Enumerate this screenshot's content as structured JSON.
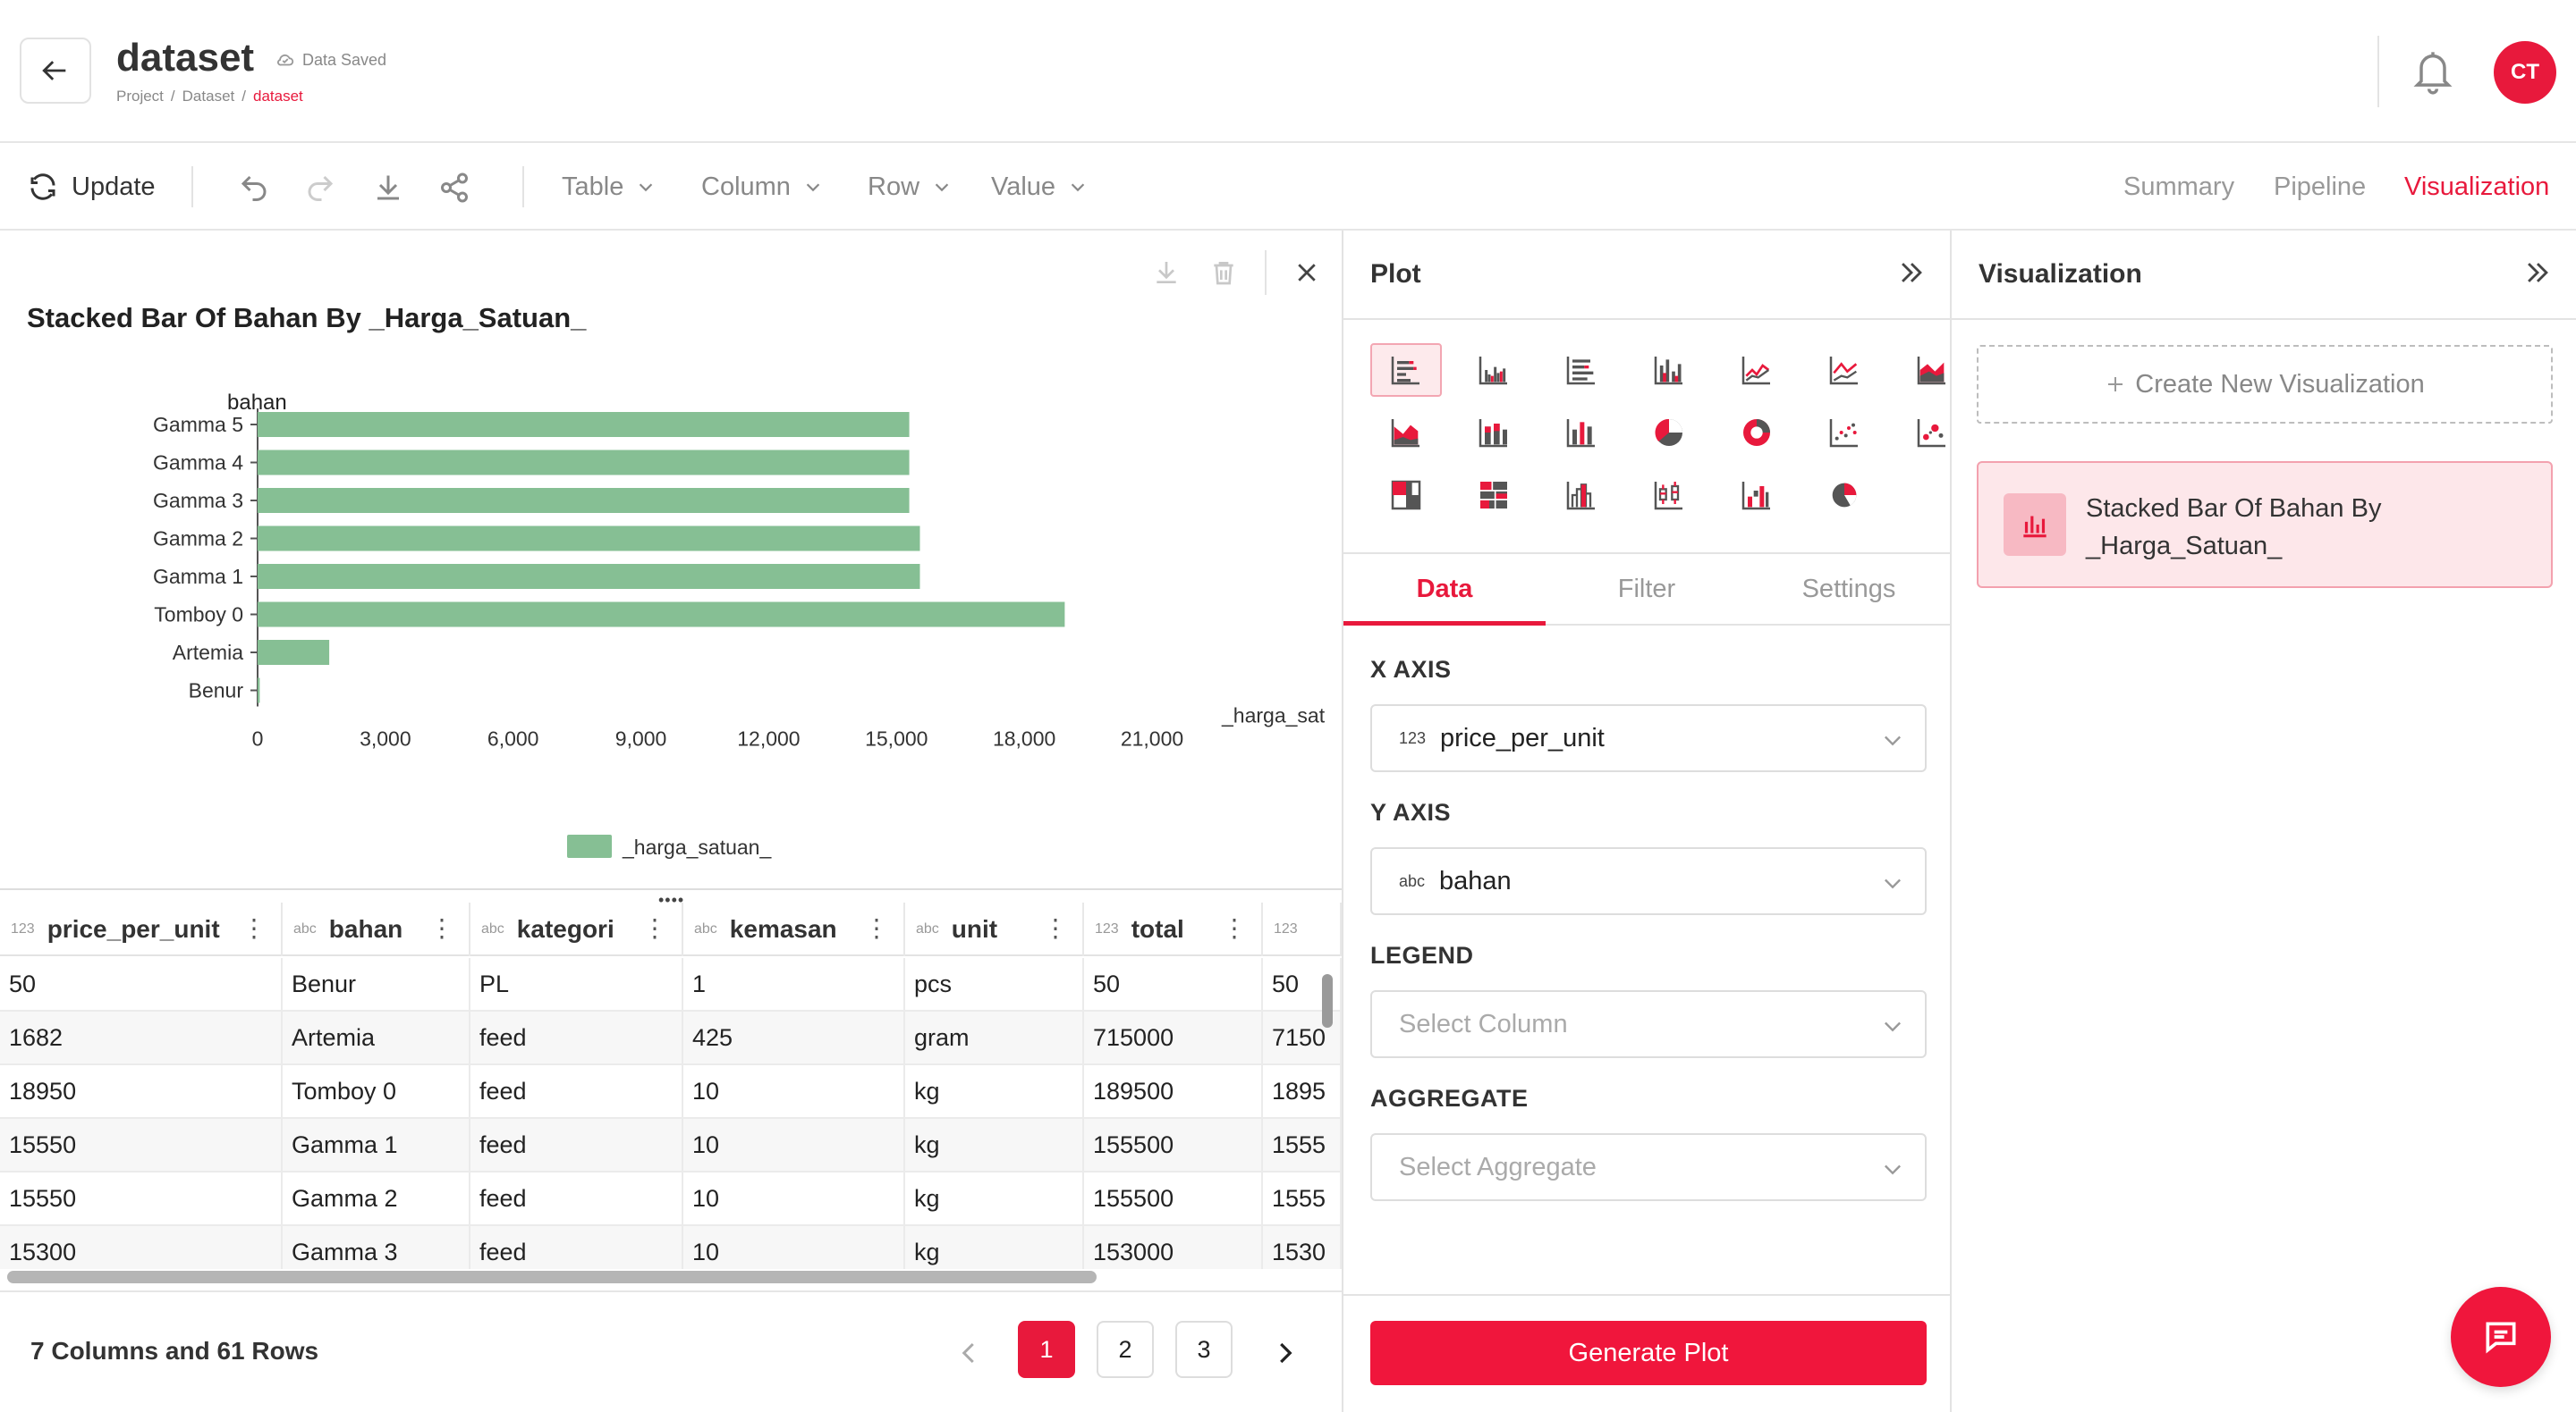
{
  "header": {
    "title": "dataset",
    "saved_status": "Data Saved",
    "breadcrumbs": [
      "Project",
      "Dataset",
      "dataset"
    ],
    "avatar_initials": "CT"
  },
  "toolbar": {
    "update_label": "Update",
    "menus": [
      "Table",
      "Column",
      "Row",
      "Value"
    ],
    "tabs": [
      "Summary",
      "Pipeline",
      "Visualization"
    ],
    "active_tab": "Visualization"
  },
  "chart_data": {
    "type": "bar",
    "orientation": "horizontal",
    "title": "Stacked Bar Of Bahan By _Harga_Satuan_",
    "ylabel": "bahan",
    "xlabel": "_harga_sat",
    "categories": [
      "Gamma 5",
      "Gamma 4",
      "Gamma 3",
      "Gamma 2",
      "Gamma 1",
      "Tomboy 0",
      "Artemia",
      "Benur"
    ],
    "series": [
      {
        "name": "_harga_satuan_",
        "values": [
          15300,
          15300,
          15300,
          15550,
          15550,
          18950,
          1682,
          50
        ]
      }
    ],
    "xlim": [
      0,
      21000
    ],
    "xticks": [
      "0",
      "3,000",
      "6,000",
      "9,000",
      "12,000",
      "15,000",
      "18,000",
      "21,000"
    ],
    "bar_color": "#86bf94",
    "legend_position": "bottom-center"
  },
  "table": {
    "columns": [
      {
        "type": "123",
        "name": "price_per_unit"
      },
      {
        "type": "abc",
        "name": "bahan"
      },
      {
        "type": "abc",
        "name": "kategori"
      },
      {
        "type": "abc",
        "name": "kemasan"
      },
      {
        "type": "abc",
        "name": "unit"
      },
      {
        "type": "123",
        "name": "total"
      },
      {
        "type": "123",
        "name": ""
      }
    ],
    "rows": [
      [
        "50",
        "Benur",
        "PL",
        "1",
        "pcs",
        "50",
        "50"
      ],
      [
        "1682",
        "Artemia",
        "feed",
        "425",
        "gram",
        "715000",
        "7150"
      ],
      [
        "18950",
        "Tomboy 0",
        "feed",
        "10",
        "kg",
        "189500",
        "1895"
      ],
      [
        "15550",
        "Gamma 1",
        "feed",
        "10",
        "kg",
        "155500",
        "1555"
      ],
      [
        "15550",
        "Gamma 2",
        "feed",
        "10",
        "kg",
        "155500",
        "1555"
      ],
      [
        "15300",
        "Gamma 3",
        "feed",
        "10",
        "kg",
        "153000",
        "1530"
      ]
    ]
  },
  "footer": {
    "summary": "7 Columns and 61 Rows",
    "pages": [
      "1",
      "2",
      "3"
    ],
    "current_page": "1"
  },
  "plot_panel": {
    "title": "Plot",
    "tabs": [
      "Data",
      "Filter",
      "Settings"
    ],
    "active_tab": "Data",
    "x_axis_label": "X AXIS",
    "x_axis_type": "123",
    "x_axis_value": "price_per_unit",
    "y_axis_label": "Y AXIS",
    "y_axis_type": "abc",
    "y_axis_value": "bahan",
    "legend_label": "LEGEND",
    "legend_placeholder": "Select Column",
    "aggregate_label": "AGGREGATE",
    "aggregate_placeholder": "Select Aggregate",
    "generate_label": "Generate Plot"
  },
  "viz_panel": {
    "title": "Visualization",
    "create_label": "Create New Visualization",
    "items": [
      "Stacked Bar Of Bahan By _Harga_Satuan_"
    ]
  },
  "colors": {
    "accent": "#e8193c",
    "bar": "#86bf94"
  }
}
